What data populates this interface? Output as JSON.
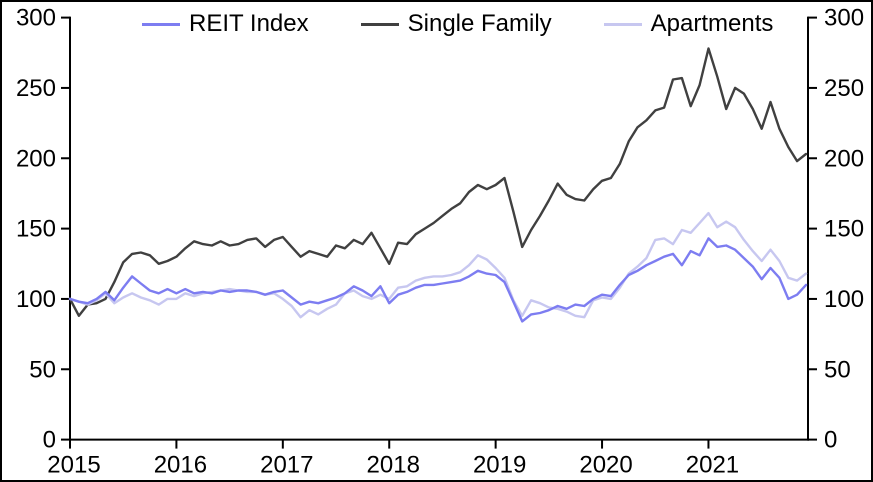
{
  "chart_data": {
    "type": "line",
    "title": "",
    "xlabel": "",
    "ylabel": "",
    "x_axis": {
      "start_year": 2015,
      "frequency": "monthly",
      "tick_labels": [
        "2015",
        "2016",
        "2017",
        "2018",
        "2019",
        "2020",
        "2021"
      ]
    },
    "ylim": [
      0,
      300
    ],
    "yticks": [
      0,
      50,
      100,
      150,
      200,
      250,
      300
    ],
    "dual_y_axis": true,
    "grid": false,
    "legend_position": "top-center",
    "axis_color": "#000000",
    "series": [
      {
        "name": "REIT Index",
        "color": "#7d7df1",
        "values": [
          100,
          98,
          97,
          100,
          105,
          99,
          108,
          116,
          111,
          106,
          104,
          107,
          104,
          107,
          104,
          105,
          104,
          106,
          105,
          106,
          106,
          105,
          103,
          105,
          106,
          101,
          96,
          98,
          97,
          99,
          101,
          104,
          109,
          106,
          102,
          109,
          97,
          103,
          105,
          108,
          110,
          110,
          111,
          112,
          113,
          116,
          120,
          118,
          117,
          112,
          98,
          84,
          89,
          90,
          92,
          95,
          93,
          96,
          95,
          100,
          103,
          102,
          110,
          117,
          120,
          124,
          127,
          130,
          132,
          124,
          134,
          131,
          143,
          137,
          138,
          135,
          129,
          123,
          114,
          122,
          115,
          100,
          103,
          110
        ]
      },
      {
        "name": "Single Family",
        "color": "#404040",
        "values": [
          100,
          88,
          96,
          97,
          100,
          112,
          126,
          132,
          133,
          131,
          125,
          127,
          130,
          136,
          141,
          139,
          138,
          141,
          138,
          139,
          142,
          143,
          137,
          142,
          144,
          137,
          130,
          134,
          132,
          130,
          138,
          136,
          142,
          139,
          147,
          136,
          125,
          140,
          139,
          146,
          150,
          154,
          159,
          164,
          168,
          176,
          181,
          178,
          181,
          186,
          162,
          137,
          149,
          159,
          170,
          182,
          174,
          171,
          170,
          178,
          184,
          186,
          196,
          212,
          222,
          227,
          234,
          236,
          256,
          257,
          237,
          252,
          278,
          258,
          235,
          250,
          246,
          235,
          221,
          240,
          221,
          208,
          198,
          203
        ]
      },
      {
        "name": "Apartments",
        "color": "#c7c7f0",
        "values": [
          100,
          98,
          96,
          99,
          104,
          97,
          101,
          104,
          101,
          99,
          96,
          100,
          100,
          104,
          102,
          104,
          105,
          106,
          107,
          106,
          105,
          105,
          103,
          104,
          100,
          95,
          87,
          92,
          89,
          93,
          96,
          104,
          106,
          102,
          100,
          103,
          100,
          108,
          109,
          113,
          115,
          116,
          116,
          117,
          119,
          124,
          131,
          128,
          122,
          115,
          99,
          88,
          99,
          97,
          94,
          93,
          91,
          88,
          87,
          99,
          101,
          100,
          108,
          118,
          123,
          129,
          142,
          143,
          139,
          149,
          147,
          154,
          161,
          151,
          155,
          151,
          142,
          134,
          127,
          135,
          127,
          115,
          113,
          118
        ]
      }
    ]
  },
  "legend": {
    "items": [
      {
        "label": "REIT Index"
      },
      {
        "label": "Single Family"
      },
      {
        "label": "Apartments"
      }
    ]
  }
}
